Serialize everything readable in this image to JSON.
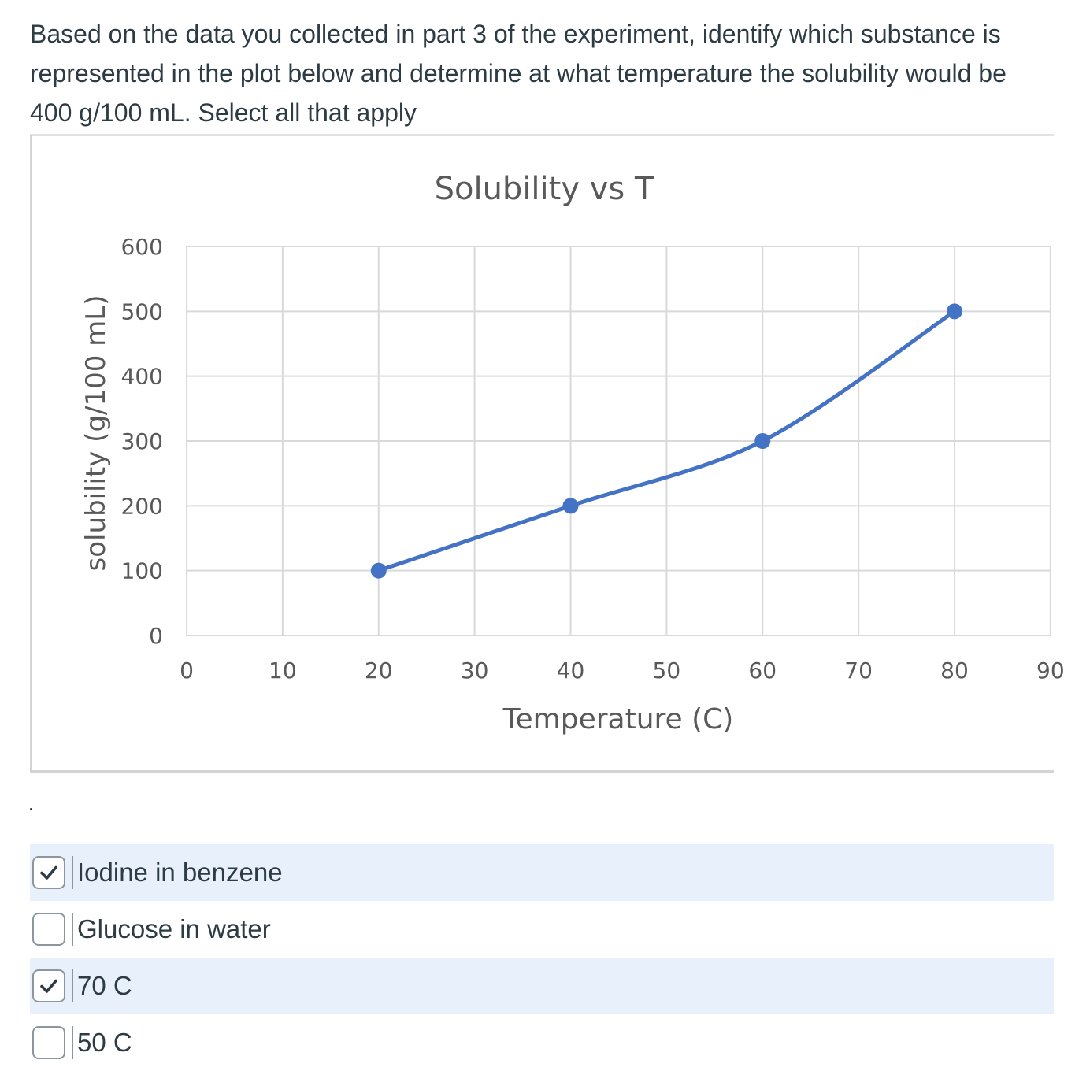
{
  "question": {
    "text": "Based on the data you collected in part 3 of the experiment, identify which substance is represented in the plot below and determine at what temperature the solubility would be 400 g/100 mL.  Select all that apply"
  },
  "stray_mark": ".",
  "answers": [
    {
      "label": "Iodine in benzene",
      "checked": true
    },
    {
      "label": "Glucose in water",
      "checked": false
    },
    {
      "label": "70 C",
      "checked": true
    },
    {
      "label": "50 C",
      "checked": false
    }
  ],
  "colors": {
    "series": "#4472c4",
    "grid": "#d9d9d9",
    "axis_text": "#595959",
    "selected_row": "#e8f0fb",
    "checkmark": "#2d3b45"
  },
  "icons": {
    "checked": "check-icon"
  },
  "chart_data": {
    "type": "scatter",
    "title": "Solubility vs T",
    "xlabel": "Temperature (C)",
    "ylabel": "solubility (g/100 mL)",
    "xlim": [
      0,
      90
    ],
    "ylim": [
      0,
      600
    ],
    "x_ticks": [
      "0",
      "10",
      "20",
      "30",
      "40",
      "50",
      "60",
      "70",
      "80",
      "90"
    ],
    "y_ticks": [
      "0",
      "100",
      "200",
      "300",
      "400",
      "500",
      "600"
    ],
    "grid": true,
    "smooth_lines": true,
    "legend": "none",
    "series": [
      {
        "x": [
          20,
          40,
          60,
          80
        ],
        "y": [
          100,
          200,
          300,
          500
        ]
      }
    ]
  }
}
